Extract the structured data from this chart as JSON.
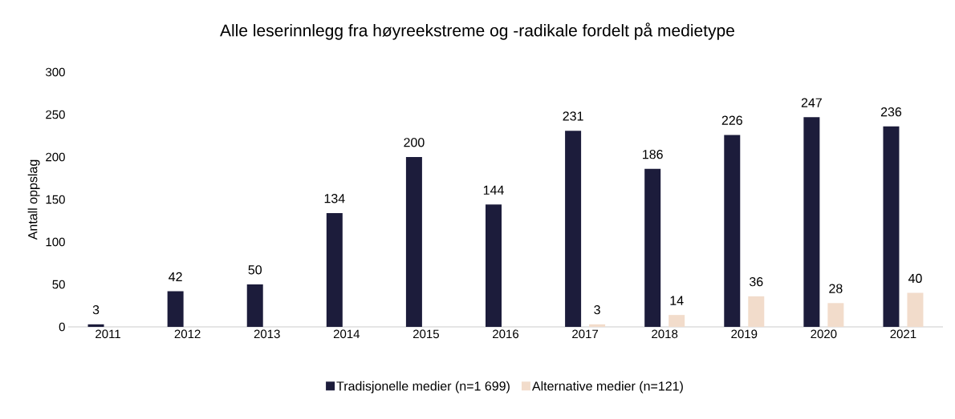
{
  "chart_data": {
    "type": "bar",
    "title": "Alle leserinnlegg fra høyreekstreme og -radikale fordelt på medietype",
    "ylabel": "Antall oppslag",
    "categories": [
      "2011",
      "2012",
      "2013",
      "2014",
      "2015",
      "2016",
      "2017",
      "2018",
      "2019",
      "2020",
      "2021"
    ],
    "series": [
      {
        "name": "Tradisjonelle medier (n=1 699)",
        "color": "#1c1c3b",
        "values": [
          3,
          42,
          50,
          134,
          200,
          144,
          231,
          186,
          226,
          247,
          236
        ]
      },
      {
        "name": "Alternative medier (n=121)",
        "color": "#f2dccb",
        "values": [
          null,
          null,
          null,
          null,
          null,
          null,
          3,
          14,
          36,
          28,
          40
        ]
      }
    ],
    "ylim": [
      0,
      300
    ],
    "yticks": [
      0,
      50,
      100,
      150,
      200,
      250,
      300
    ],
    "data_labels": true,
    "legend": "bottom",
    "grid": false
  }
}
